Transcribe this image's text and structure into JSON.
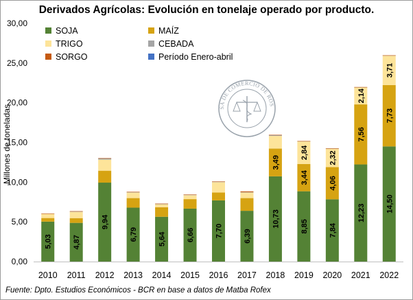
{
  "chart_data": {
    "type": "bar",
    "stacked": true,
    "title": "Derivados Agrícolas: Evolución en tonelaje operado por producto.",
    "ylabel": "Millones de toneladas",
    "xlabel": "",
    "ylim": [
      0,
      30
    ],
    "yticks": [
      "0,00",
      "5,00",
      "10,00",
      "15,00",
      "20,00",
      "25,00",
      "30,00"
    ],
    "grid": false,
    "legend_position": "top-left",
    "categories": [
      "2010",
      "2011",
      "2012",
      "2013",
      "2014",
      "2015",
      "2016",
      "2017",
      "2018",
      "2019",
      "2020",
      "2021",
      "2022"
    ],
    "series": [
      {
        "name": "SOJA",
        "color": "#548235",
        "values": [
          5.03,
          4.87,
          9.94,
          6.79,
          5.64,
          6.66,
          7.7,
          6.39,
          10.73,
          8.85,
          7.84,
          12.23,
          14.5
        ],
        "labels": [
          "5,03",
          "4,87",
          "9,94",
          "6,79",
          "5,64",
          "6,66",
          "7,70",
          "6,39",
          "10,73",
          "8,85",
          "7,84",
          "12,23",
          "14,50"
        ]
      },
      {
        "name": "MAÍZ",
        "color": "#d6a312",
        "values": [
          0.45,
          0.6,
          1.5,
          1.2,
          1.2,
          1.2,
          1.0,
          1.6,
          3.49,
          3.44,
          4.06,
          7.56,
          7.73
        ],
        "labels": [
          "",
          "",
          "",
          "",
          "",
          "",
          "",
          "",
          "3,49",
          "3,44",
          "4,06",
          "7,56",
          "7,73"
        ]
      },
      {
        "name": "TRIGO",
        "color": "#fde49a",
        "values": [
          0.55,
          0.8,
          1.4,
          0.7,
          0.4,
          0.5,
          1.3,
          0.7,
          1.6,
          2.84,
          2.32,
          2.14,
          3.71
        ],
        "labels": [
          "",
          "",
          "",
          "",
          "",
          "",
          "",
          "",
          "",
          "2,84",
          "2,32",
          "2,14",
          "3,71"
        ]
      },
      {
        "name": "CEBADA",
        "color": "#a5a5a5",
        "values": [
          0.02,
          0.03,
          0.15,
          0.05,
          0.02,
          0.05,
          0.05,
          0.05,
          0.1,
          0.03,
          0.03,
          0.03,
          0.02
        ],
        "labels": [
          "",
          "",
          "",
          "",
          "",
          "",
          "",
          "",
          "",
          "",
          "",
          "",
          ""
        ]
      },
      {
        "name": "SORGO",
        "color": "#c55a11",
        "values": [
          0.01,
          0.05,
          0.05,
          0.05,
          0.04,
          0.04,
          0.05,
          0.1,
          0.05,
          0.02,
          0.02,
          0.02,
          0.02
        ],
        "labels": [
          "",
          "",
          "",
          "",
          "",
          "",
          "",
          "",
          "",
          "",
          "",
          "",
          ""
        ]
      },
      {
        "name": "Período Enero-abril",
        "color": "#4472c4",
        "values": [
          0,
          0,
          0,
          0,
          0,
          0,
          0,
          0,
          0,
          0,
          0,
          0,
          0
        ],
        "labels": [
          "",
          "",
          "",
          "",
          "",
          "",
          "",
          "",
          "",
          "",
          "",
          "",
          ""
        ]
      }
    ]
  },
  "seal": {
    "text": "BOLSA DE COMERCIO DE ROSARIO"
  },
  "source_note": "Fuente: Dpto. Estudios Económicos - BCR en base a datos de Matba Rofex"
}
